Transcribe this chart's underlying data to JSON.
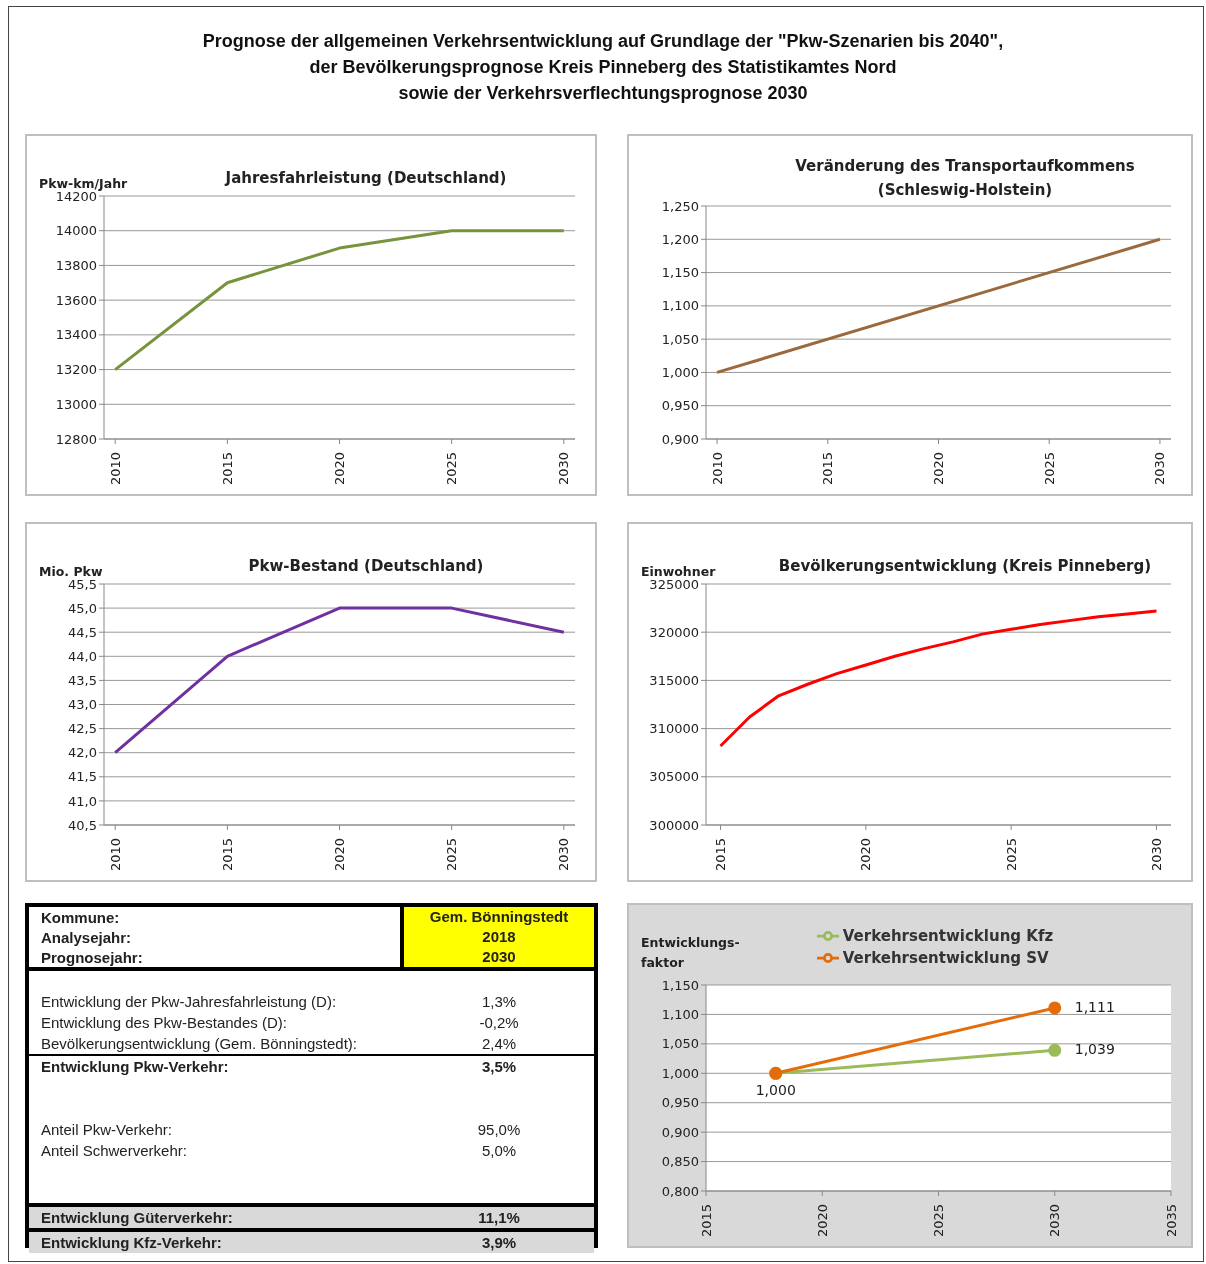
{
  "chart_data": [
    {
      "type": "other",
      "title": "Prognose der allgemeinen Verkehrsentwicklung auf Grundlage der \"Pkw-Szenarien bis 2040\",\nder Bevölkerungsprognose Kreis Pinneberg des Statistikamtes Nord\nsowie der Verkehrsverflechtungsprognose 2030"
    },
    {
      "type": "line",
      "title": "Jahresfahrleistung (Deutschland)",
      "ylabel": "Pkw-km/Jahr",
      "color": "#77933c",
      "x": [
        2010,
        2015,
        2020,
        2025,
        2030
      ],
      "values": [
        13200,
        13700,
        13900,
        14000,
        14000
      ],
      "xlim": [
        2009.5,
        2030.5
      ],
      "xticks": [
        2010,
        2015,
        2020,
        2025,
        2030
      ],
      "ylim": [
        12800,
        14200
      ],
      "yticks": [
        12800,
        13000,
        13200,
        13400,
        13600,
        13800,
        14000,
        14200
      ],
      "grid": "y"
    },
    {
      "type": "line",
      "title": "Veränderung des Transportaufkommens\n(Schleswig-Holstein)",
      "color": "#9b6a3c",
      "x": [
        2010,
        2030
      ],
      "values": [
        1.0,
        1.2
      ],
      "xlim": [
        2009.5,
        2030.5
      ],
      "xticks": [
        2010,
        2015,
        2020,
        2025,
        2030
      ],
      "ylim": [
        0.9,
        1.25
      ],
      "yticks": [
        {
          "value": 0.9,
          "label": "0,900"
        },
        {
          "value": 0.95,
          "label": "0,950"
        },
        {
          "value": 1.0,
          "label": "1,000"
        },
        {
          "value": 1.05,
          "label": "1,050"
        },
        {
          "value": 1.1,
          "label": "1,100"
        },
        {
          "value": 1.15,
          "label": "1,150"
        },
        {
          "value": 1.2,
          "label": "1,200"
        },
        {
          "value": 1.25,
          "label": "1,250"
        }
      ],
      "grid": "y"
    },
    {
      "type": "line",
      "title": "Pkw-Bestand (Deutschland)",
      "ylabel": "Mio. Pkw",
      "color": "#7030a0",
      "x": [
        2010,
        2015,
        2020,
        2025,
        2030
      ],
      "values": [
        42.0,
        44.0,
        45.0,
        45.0,
        44.5
      ],
      "xlim": [
        2009.5,
        2030.5
      ],
      "xticks": [
        2010,
        2015,
        2020,
        2025,
        2030
      ],
      "ylim": [
        40.5,
        45.5
      ],
      "yticks": [
        {
          "value": 40.5,
          "label": "40,5"
        },
        {
          "value": 41,
          "label": "41,0"
        },
        {
          "value": 41.5,
          "label": "41,5"
        },
        {
          "value": 42,
          "label": "42,0"
        },
        {
          "value": 42.5,
          "label": "42,5"
        },
        {
          "value": 43,
          "label": "43,0"
        },
        {
          "value": 43.5,
          "label": "43,5"
        },
        {
          "value": 44,
          "label": "44,0"
        },
        {
          "value": 44.5,
          "label": "44,5"
        },
        {
          "value": 45,
          "label": "45,0"
        },
        {
          "value": 45.5,
          "label": "45,5"
        }
      ],
      "grid": "y"
    },
    {
      "type": "line",
      "title": "Bevölkerungsentwicklung (Kreis Pinneberg)",
      "ylabel": "Einwohner",
      "color": "#ff0000",
      "x": [
        2015,
        2016,
        2017,
        2018,
        2019,
        2020,
        2021,
        2022,
        2023,
        2024,
        2025,
        2026,
        2027,
        2028,
        2029,
        2030
      ],
      "values": [
        308200,
        311200,
        313400,
        314600,
        315700,
        316600,
        317500,
        318300,
        319000,
        319800,
        320300,
        320800,
        321200,
        321600,
        321900,
        322200
      ],
      "xlim": [
        2014.5,
        2030.5
      ],
      "xticks": [
        2015,
        2020,
        2025,
        2030
      ],
      "ylim": [
        300000,
        325000
      ],
      "yticks": [
        300000,
        305000,
        310000,
        315000,
        320000,
        325000
      ],
      "grid": "y"
    },
    {
      "type": "other",
      "annotations": [
        "Kommune:",
        "Gem. Bönningstedt",
        "Analysejahr:",
        "2018",
        "Prognosejahr:",
        "2030",
        "Entwicklung der Pkw-Jahresfahrleistung (D):",
        "1,3%",
        "Entwicklung des Pkw-Bestandes (D):",
        "-0,2%",
        "Bevölkerungsentwicklung (Gem. Bönningstedt):",
        "2,4%",
        "Entwicklung Pkw-Verkehr:",
        "3,5%",
        "Anteil Pkw-Verkehr:",
        "95,0%",
        "Anteil Schwerverkehr:",
        "5,0%",
        "Entwicklung Güterverkehr:",
        "11,1%",
        "Entwicklung Kfz-Verkehr:",
        "3,9%"
      ]
    },
    {
      "type": "line",
      "ylabel": "Entwicklungs-\nfaktor",
      "legend": "top",
      "marker": "circle",
      "x": [
        2018,
        2030
      ],
      "xlim": [
        2015,
        2035
      ],
      "xticks": [
        2015,
        2020,
        2025,
        2030,
        2035
      ],
      "ylim": [
        0.8,
        1.15
      ],
      "yticks": [
        {
          "value": 0.8,
          "label": "0,800"
        },
        {
          "value": 0.85,
          "label": "0,850"
        },
        {
          "value": 0.9,
          "label": "0,900"
        },
        {
          "value": 0.95,
          "label": "0,950"
        },
        {
          "value": 1.0,
          "label": "1,000"
        },
        {
          "value": 1.05,
          "label": "1,050"
        },
        {
          "value": 1.1,
          "label": "1,100"
        },
        {
          "value": 1.15,
          "label": "1,150"
        }
      ],
      "grid": "y",
      "series": [
        {
          "name": "Verkehrsentwicklung Kfz",
          "color": "#9bbb59",
          "values": [
            1.0,
            1.039
          ],
          "value_labels": [
            "1,000",
            "1,039"
          ]
        },
        {
          "name": "Verkehrsentwicklung SV",
          "color": "#e46c0a",
          "values": [
            1.0,
            1.111
          ],
          "value_labels": [
            null,
            "1,111"
          ]
        }
      ]
    }
  ]
}
